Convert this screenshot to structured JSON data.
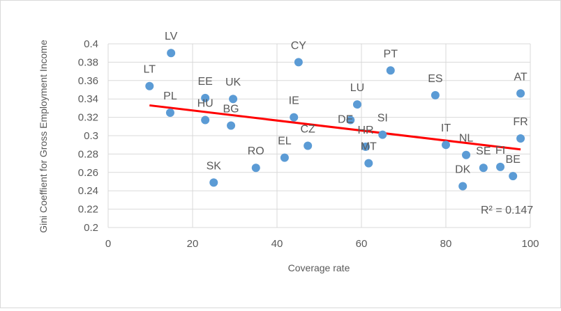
{
  "chart_data": {
    "type": "scatter",
    "title": "",
    "xlabel": "Coverage rate",
    "ylabel": "Gini Coeffient for Gross Employment Income",
    "xlim": [
      0,
      100
    ],
    "ylim": [
      0.2,
      0.4
    ],
    "x_ticks": [
      "0",
      "20",
      "40",
      "60",
      "80",
      "100"
    ],
    "y_ticks": [
      "0.2",
      "0.22",
      "0.24",
      "0.26",
      "0.28",
      "0.3",
      "0.32",
      "0.34",
      "0.36",
      "0.38",
      "0.4"
    ],
    "grid": true,
    "marker_color": "#5b9bd5",
    "trendline_color": "#ff0000",
    "points": [
      {
        "label": "LV",
        "x": 14.9,
        "y": 0.39
      },
      {
        "label": "LT",
        "x": 9.8,
        "y": 0.354
      },
      {
        "label": "PL",
        "x": 14.7,
        "y": 0.325
      },
      {
        "label": "EE",
        "x": 23.0,
        "y": 0.341
      },
      {
        "label": "HU",
        "x": 23.0,
        "y": 0.317
      },
      {
        "label": "UK",
        "x": 29.6,
        "y": 0.34
      },
      {
        "label": "BG",
        "x": 29.1,
        "y": 0.311
      },
      {
        "label": "SK",
        "x": 25.0,
        "y": 0.249
      },
      {
        "label": "RO",
        "x": 35.0,
        "y": 0.265
      },
      {
        "label": "CY",
        "x": 45.1,
        "y": 0.38
      },
      {
        "label": "IE",
        "x": 44.0,
        "y": 0.32
      },
      {
        "label": "EL",
        "x": 41.8,
        "y": 0.276
      },
      {
        "label": "CZ",
        "x": 47.3,
        "y": 0.289
      },
      {
        "label": "LU",
        "x": 59.0,
        "y": 0.334
      },
      {
        "label": "DE",
        "x": 57.4,
        "y": 0.317
      },
      {
        "label": "PT",
        "x": 66.9,
        "y": 0.371
      },
      {
        "label": "SI",
        "x": 65.0,
        "y": 0.301
      },
      {
        "label": "HR",
        "x": 61.0,
        "y": 0.288
      },
      {
        "label": "MT",
        "x": 61.7,
        "y": 0.27
      },
      {
        "label": "ES",
        "x": 77.5,
        "y": 0.344
      },
      {
        "label": "IT",
        "x": 80.0,
        "y": 0.29
      },
      {
        "label": "NL",
        "x": 84.8,
        "y": 0.279
      },
      {
        "label": "DK",
        "x": 84.0,
        "y": 0.245
      },
      {
        "label": "SE",
        "x": 88.9,
        "y": 0.265
      },
      {
        "label": "FI",
        "x": 92.9,
        "y": 0.266
      },
      {
        "label": "BE",
        "x": 95.9,
        "y": 0.256
      },
      {
        "label": "AT",
        "x": 97.7,
        "y": 0.346
      },
      {
        "label": "FR",
        "x": 97.7,
        "y": 0.297
      }
    ],
    "trendline": {
      "type": "linear",
      "x": [
        9.8,
        97.7
      ],
      "y": [
        0.333,
        0.285
      ],
      "r2_label": "R² = 0.147"
    }
  }
}
